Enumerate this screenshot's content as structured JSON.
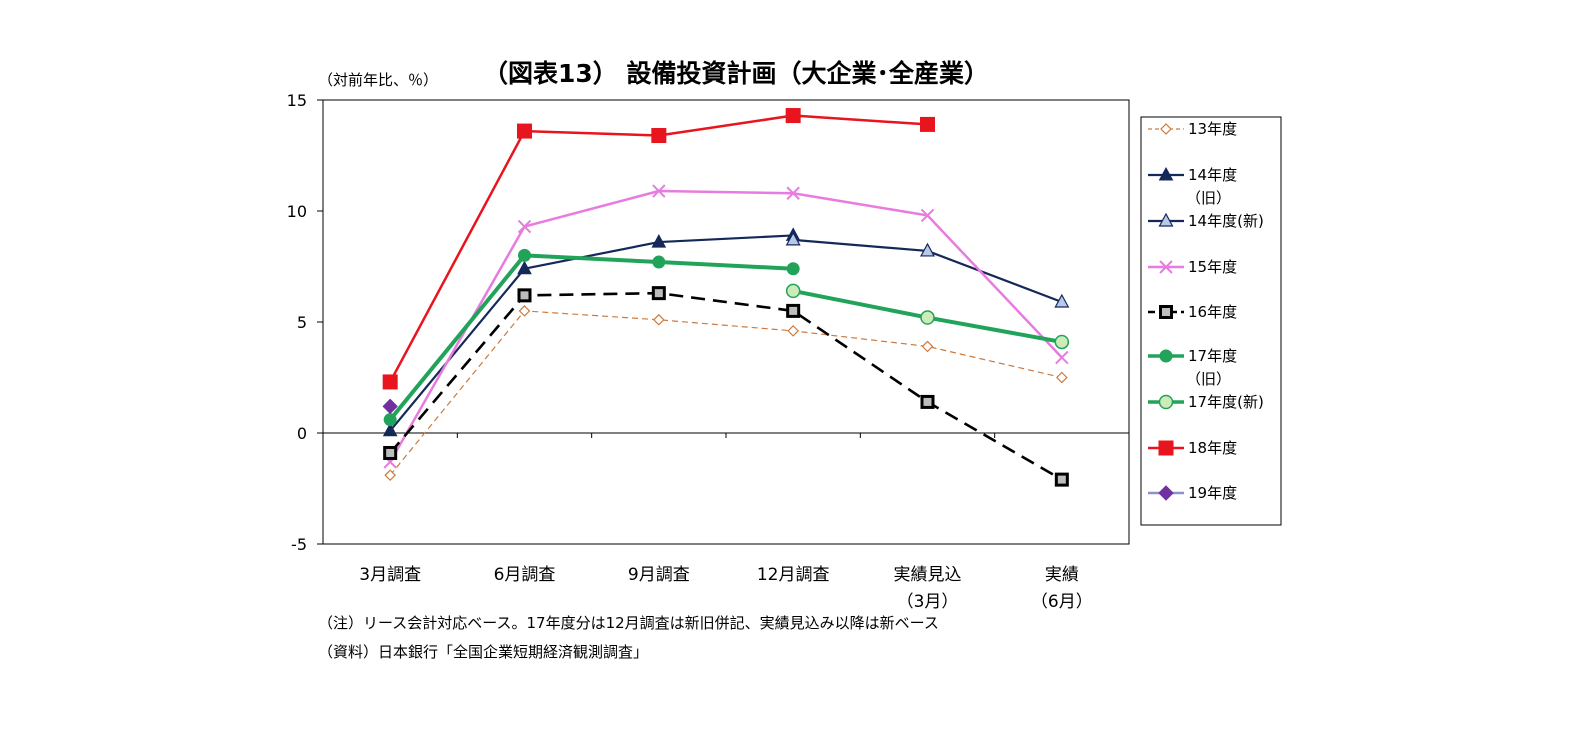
{
  "chart_data": {
    "type": "line",
    "title": "（図表13） 設備投資計画（大企業･全産業）",
    "ylabel": "（対前年比、％）",
    "ylim": [
      -5,
      15
    ],
    "yticks": [
      "15",
      "10",
      "5",
      "0",
      "-5"
    ],
    "categories": [
      {
        "line1": "3月調査",
        "line2": ""
      },
      {
        "line1": "6月調査",
        "line2": ""
      },
      {
        "line1": "9月調査",
        "line2": ""
      },
      {
        "line1": "12月調査",
        "line2": ""
      },
      {
        "line1": "実績見込",
        "line2": "（3月）"
      },
      {
        "line1": "実績",
        "line2": "（6月）"
      }
    ],
    "legend_position": "right",
    "series": [
      {
        "name": "13年度",
        "name2": "",
        "color": "#CC7A3D",
        "dash": "6,4",
        "width": 1.2,
        "marker": "diamond-open",
        "values": [
          -1.9,
          5.5,
          5.1,
          4.6,
          3.9,
          2.5
        ]
      },
      {
        "name": "14年度",
        "name2": "（旧）",
        "color": "#14285A",
        "dash": "",
        "width": 2.2,
        "marker": "triangle-filled",
        "values": [
          0.1,
          7.4,
          8.6,
          8.9,
          null,
          null
        ]
      },
      {
        "name": "14年度(新)",
        "name2": "",
        "color": "#14285A",
        "dash": "",
        "width": 2.2,
        "marker": "triangle-open",
        "values": [
          null,
          null,
          null,
          8.7,
          8.2,
          5.9
        ]
      },
      {
        "name": "15年度",
        "name2": "",
        "color": "#E87BE0",
        "dash": "",
        "width": 2.5,
        "marker": "x",
        "values": [
          -1.3,
          9.3,
          10.9,
          10.8,
          9.8,
          3.4
        ]
      },
      {
        "name": "16年度",
        "name2": "",
        "color": "#000000",
        "dash": "14,8",
        "width": 2.6,
        "marker": "square-open",
        "values": [
          -0.9,
          6.2,
          6.3,
          5.5,
          1.4,
          -2.1
        ]
      },
      {
        "name": "17年度",
        "name2": "（旧）",
        "color": "#22A35A",
        "dash": "",
        "width": 4,
        "marker": "circle-filled",
        "values": [
          0.6,
          8.0,
          7.7,
          7.4,
          null,
          null
        ]
      },
      {
        "name": "17年度(新)",
        "name2": "",
        "color": "#22A35A",
        "dash": "",
        "width": 4,
        "marker": "circle-open",
        "values": [
          null,
          null,
          null,
          6.4,
          5.2,
          4.1
        ]
      },
      {
        "name": "18年度",
        "name2": "",
        "color": "#E8141E",
        "dash": "",
        "width": 2.5,
        "marker": "square-filled",
        "values": [
          2.3,
          13.6,
          13.4,
          14.3,
          13.9,
          null
        ]
      },
      {
        "name": "19年度",
        "name2": "",
        "color": "#8A92C8",
        "dash": "",
        "width": 2.5,
        "marker": "diamond-filled",
        "values": [
          1.2,
          null,
          null,
          null,
          null,
          null
        ]
      }
    ]
  },
  "notes": {
    "note": "（注）リース会計対応ベース。17年度分は12月調査は新旧併記、実績見込み以降は新ベース",
    "source": "（資料）日本銀行「全国企業短期経済観測調査」"
  }
}
